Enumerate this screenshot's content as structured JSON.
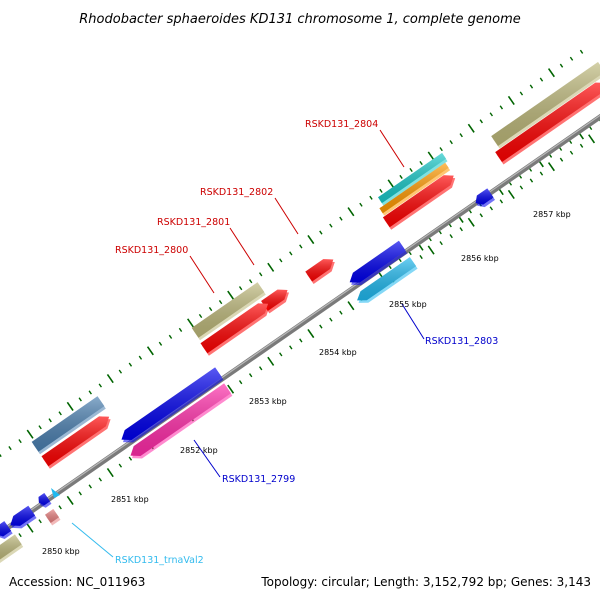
{
  "map_title": "Rhodobacter sphaeroides KD131 chromosome 1, complete genome",
  "accession": "Accession: NC_011963",
  "topology": "Topology: circular; Length: 3,152,792 bp; Genes: 3,143",
  "scale_labels": [
    "2850 kbp",
    "2851 kbp",
    "2852 kbp",
    "2853 kbp",
    "2854 kbp",
    "2855 kbp",
    "2856 kbp",
    "2857 kbp"
  ],
  "gene_labels": [
    {
      "name": "RSKD131_2804",
      "color": "#cc0000"
    },
    {
      "name": "RSKD131_2802",
      "color": "#cc0000"
    },
    {
      "name": "RSKD131_2801",
      "color": "#cc0000"
    },
    {
      "name": "RSKD131_2800",
      "color": "#cc0000"
    },
    {
      "name": "RSKD131_2803",
      "color": "#0000cc"
    },
    {
      "name": "RSKD131_2799",
      "color": "#0000cc"
    },
    {
      "name": "RSKD131_trnaVal2",
      "color": "#33bbee"
    }
  ],
  "feature_colors": {
    "backbone": "#808080",
    "cds_forward": "#ff0000",
    "cds_reverse": "#0000ee",
    "gene_olive": "#bdb87a",
    "gene_steel": "#4a7fb0",
    "pink": "#ff2aa8",
    "cyan": "#1fb8ee",
    "teal": "#18c8c8",
    "orange": "#ff9900",
    "trna": "#e88080",
    "tick": "#006400"
  }
}
